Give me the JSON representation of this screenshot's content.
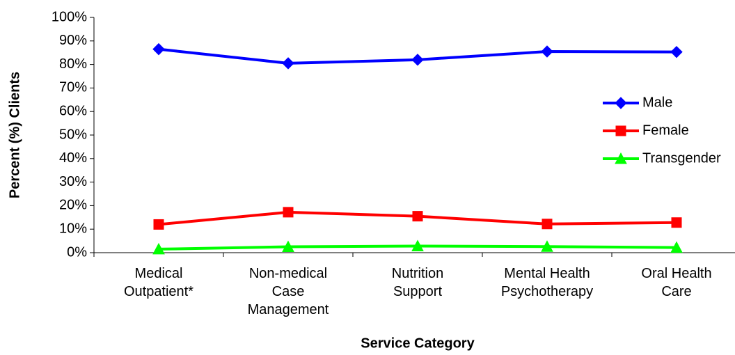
{
  "chart_data": {
    "type": "line",
    "y_label": "Percent (%) Clients",
    "x_label": "Service Category",
    "categories": [
      "Medical Outpatient*",
      "Non-medical Case Management",
      "Nutrition Support",
      "Mental Health Psychotherapy",
      "Oral Health Care"
    ],
    "series": [
      {
        "name": "Male",
        "color": "#0000ff",
        "marker": "diamond",
        "values": [
          86.5,
          80.5,
          82,
          85.5,
          85.3
        ]
      },
      {
        "name": "Female",
        "color": "#ff0000",
        "marker": "square",
        "values": [
          12,
          17.2,
          15.5,
          12.2,
          12.8
        ]
      },
      {
        "name": "Transgender",
        "color": "#00ff00",
        "marker": "triangle",
        "values": [
          1.5,
          2.5,
          2.8,
          2.6,
          2.2
        ]
      }
    ],
    "ylim": [
      0,
      100
    ],
    "yticks": [
      {
        "value": 0,
        "label": "0%"
      },
      {
        "value": 10,
        "label": "10%"
      },
      {
        "value": 20,
        "label": "20%"
      },
      {
        "value": 30,
        "label": "30%"
      },
      {
        "value": 40,
        "label": "40%"
      },
      {
        "value": 50,
        "label": "50%"
      },
      {
        "value": 60,
        "label": "60%"
      },
      {
        "value": 70,
        "label": "70%"
      },
      {
        "value": 80,
        "label": "80%"
      },
      {
        "value": 90,
        "label": "90%"
      },
      {
        "value": 100,
        "label": "100%"
      }
    ],
    "grid": false,
    "legend": "right"
  }
}
